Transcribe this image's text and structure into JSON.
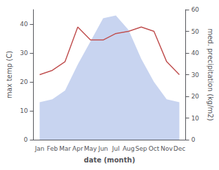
{
  "chart_data": {
    "type": "line",
    "categories": [
      "Jan",
      "Feb",
      "Mar",
      "Apr",
      "May",
      "Jun",
      "Jul",
      "Aug",
      "Sep",
      "Oct",
      "Nov",
      "Dec"
    ],
    "xlabel": "date (month)",
    "ylabel": "max temp (C)",
    "y2label": "med. precipitation (kg/m2)",
    "ylim": [
      0,
      45
    ],
    "yticks": [
      0,
      10,
      20,
      30,
      40
    ],
    "y2lim": [
      0,
      60
    ],
    "y2ticks": [
      0,
      10,
      20,
      30,
      40,
      50,
      60
    ],
    "grid": false,
    "series": [
      {
        "type": "area",
        "color": "#c8d4f0",
        "values": [
          13,
          14,
          17,
          26,
          34,
          42,
          43,
          38,
          28,
          20,
          14,
          13
        ]
      },
      {
        "type": "line",
        "color": "#c05050",
        "axis": "y2",
        "values": [
          30,
          32,
          36,
          52,
          46,
          46,
          49,
          50,
          52,
          50,
          36,
          30
        ]
      }
    ]
  }
}
